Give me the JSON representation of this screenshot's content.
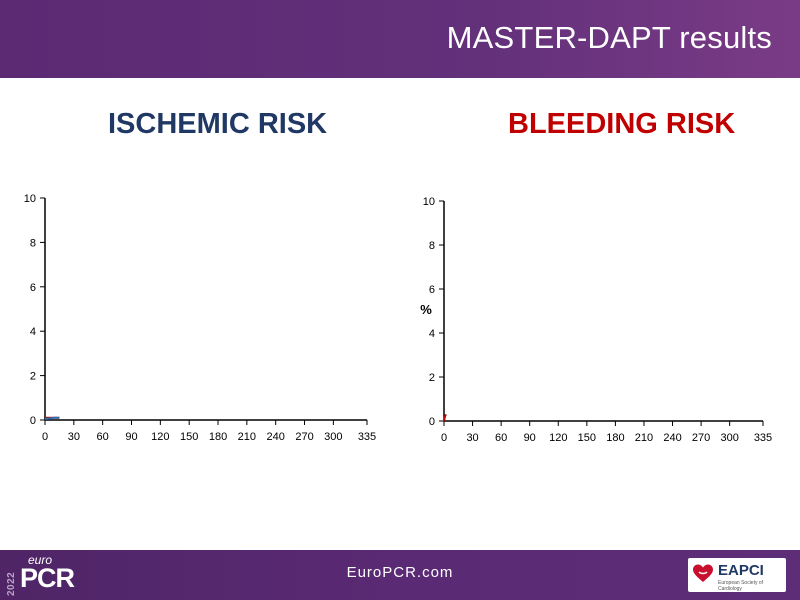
{
  "header": {
    "title": "MASTER-DAPT results"
  },
  "panels": {
    "ischemic_title": "ISCHEMIC RISK",
    "bleeding_title": "BLEEDING RISK"
  },
  "footer": {
    "url": "EuroPCR.com",
    "logo_year": "2022",
    "logo_euro": "euro",
    "logo_pcr": "PCR",
    "eapci_label": "EAPCI",
    "eapci_sub": "European Society of Cardiology"
  },
  "colors": {
    "ischemic_title": "#1f3864",
    "bleeding_title": "#c00000",
    "header_bg": "#5b2a73"
  },
  "chart_data": [
    {
      "type": "line",
      "title": "ISCHEMIC RISK",
      "xlabel": "",
      "ylabel": "",
      "xlim": [
        0,
        335
      ],
      "ylim": [
        0,
        10
      ],
      "x_ticks": [
        0,
        30,
        60,
        90,
        120,
        150,
        180,
        210,
        240,
        270,
        300,
        335
      ],
      "y_ticks": [
        0,
        2,
        4,
        6,
        8,
        10
      ],
      "grid": false,
      "series": [
        {
          "color": "#c00000",
          "x": [
            0,
            5,
            10,
            15
          ],
          "y": [
            0.1,
            0.1,
            0.1,
            0.1
          ]
        },
        {
          "color": "#2f6fb0",
          "x": [
            0,
            5,
            10,
            15
          ],
          "y": [
            0.05,
            0.07,
            0.1,
            0.1
          ]
        }
      ]
    },
    {
      "type": "line",
      "title": "BLEEDING RISK",
      "xlabel": "",
      "ylabel": "%",
      "xlim": [
        0,
        335
      ],
      "ylim": [
        0,
        10
      ],
      "x_ticks": [
        0,
        30,
        60,
        90,
        120,
        150,
        180,
        210,
        240,
        270,
        300,
        335
      ],
      "y_ticks": [
        0,
        2,
        4,
        6,
        8,
        10
      ],
      "grid": false,
      "series": [
        {
          "color": "#c00000",
          "x": [
            0,
            1,
            2
          ],
          "y": [
            0,
            0.2,
            0.3
          ]
        }
      ]
    }
  ]
}
